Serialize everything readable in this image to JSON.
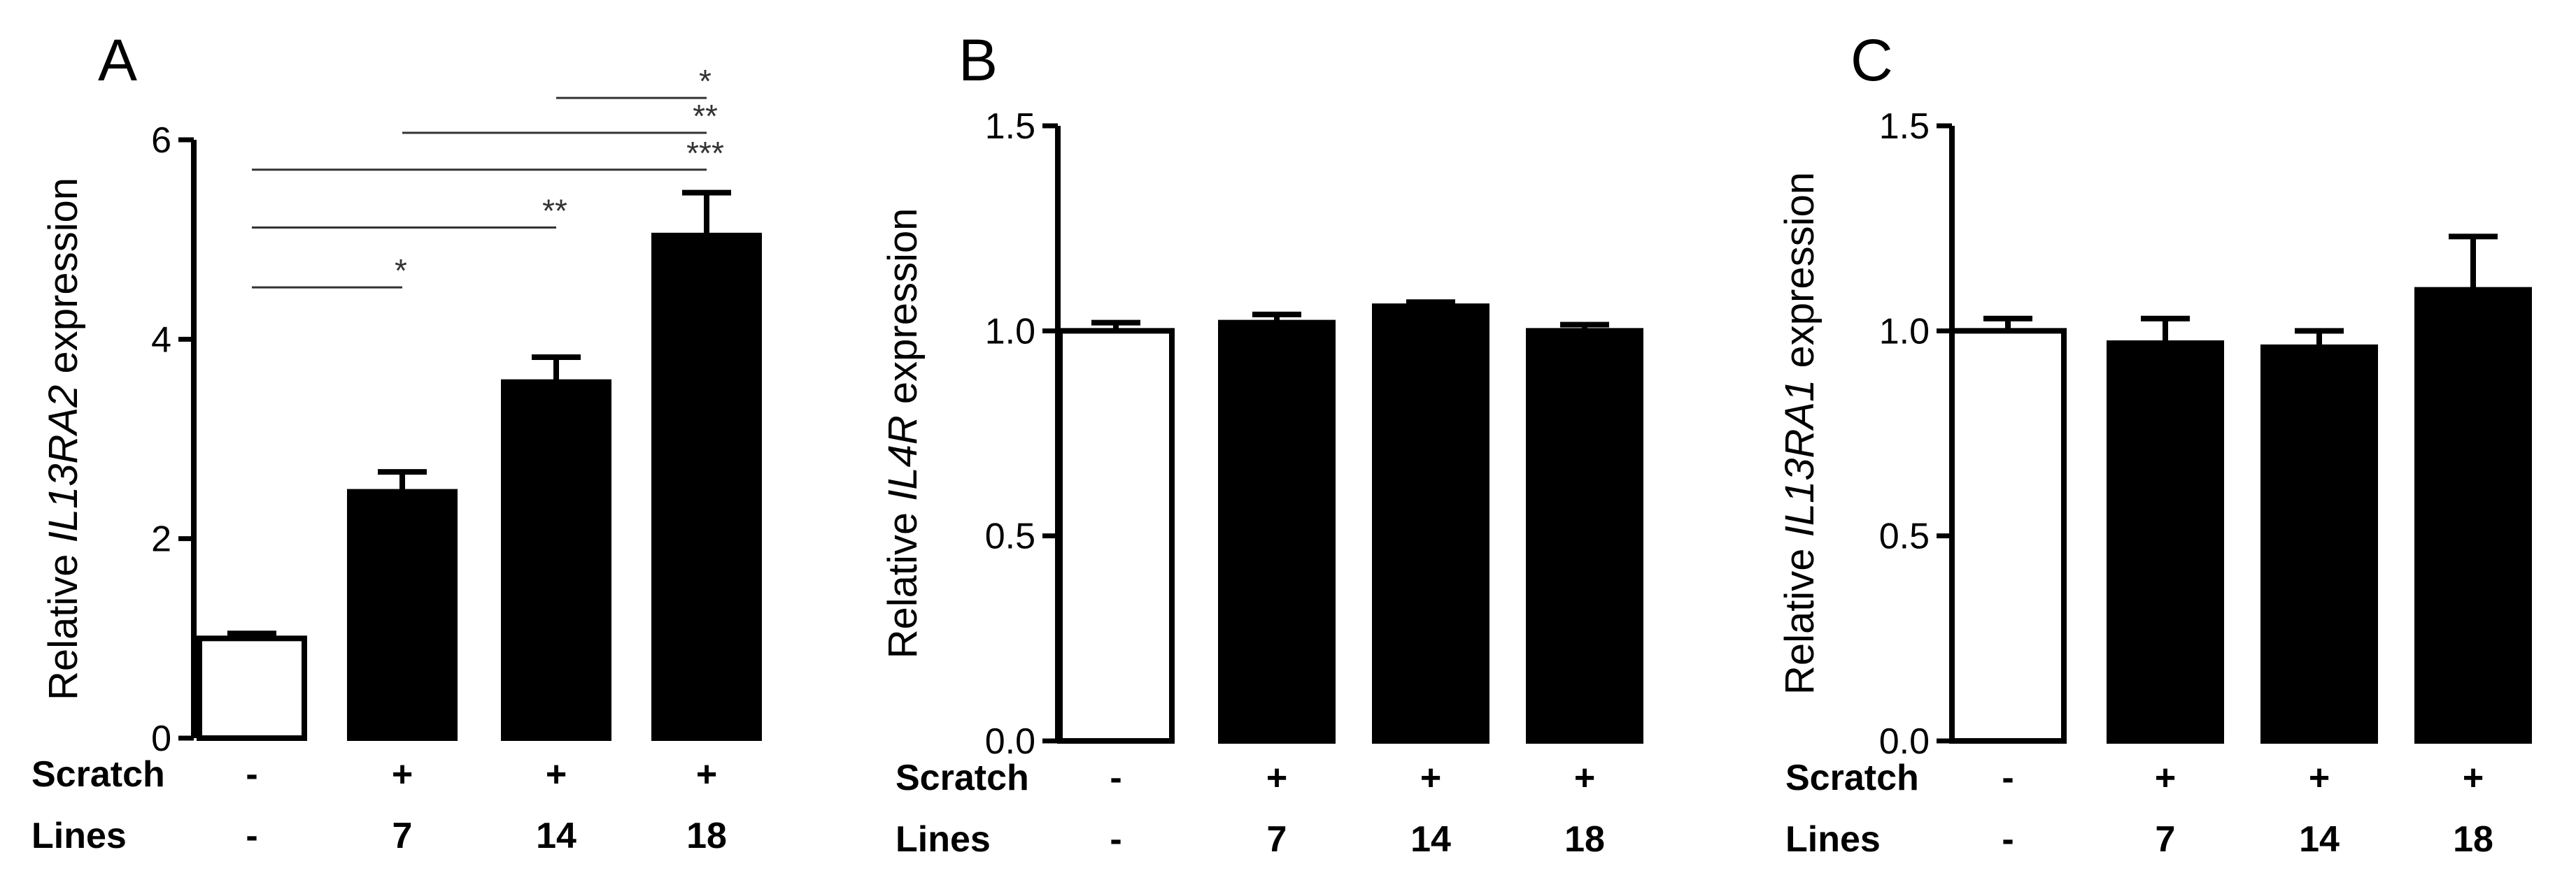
{
  "colors": {
    "control_fill": "#ffffff",
    "treated_fill": "#000000",
    "stroke": "#000000",
    "significance": "#333333"
  },
  "chart_data": [
    {
      "panel": "A",
      "type": "bar",
      "ylabel_prefix": "Relative ",
      "ylabel_gene": "IL13RA2",
      "ylabel_suffix": " expression",
      "ylim": [
        0,
        6
      ],
      "yticks": [
        "0",
        "2",
        "4",
        "6"
      ],
      "rows": [
        {
          "label": "Scratch",
          "values": [
            "-",
            "+",
            "+",
            "+"
          ]
        },
        {
          "label": "Lines",
          "values": [
            "-",
            "7",
            "14",
            "18"
          ]
        }
      ],
      "values": [
        1.0,
        2.47,
        3.57,
        5.04
      ],
      "errors": [
        0.05,
        0.2,
        0.25,
        0.43
      ],
      "fills": [
        "control",
        "treated",
        "treated",
        "treated"
      ],
      "significance": [
        {
          "from": 0,
          "to": 1,
          "label": "*",
          "y": 4.52
        },
        {
          "from": 0,
          "to": 2,
          "label": "**",
          "y": 5.12
        },
        {
          "from": 0,
          "to": 3,
          "label": "***",
          "y": 5.7
        },
        {
          "from": 1,
          "to": 3,
          "label": "**",
          "y": 6.07
        },
        {
          "from": 2,
          "to": 3,
          "label": "*",
          "y": 6.42
        }
      ]
    },
    {
      "panel": "B",
      "type": "bar",
      "ylabel_prefix": "Relative ",
      "ylabel_gene": "IL4R",
      "ylabel_suffix": " expression",
      "ylim": [
        0,
        1.5
      ],
      "yticks": [
        "0.0",
        "0.5",
        "1.0",
        "1.5"
      ],
      "rows": [
        {
          "label": "Scratch",
          "values": [
            "-",
            "+",
            "+",
            "+"
          ]
        },
        {
          "label": "Lines",
          "values": [
            "-",
            "7",
            "14",
            "18"
          ]
        }
      ],
      "values": [
        1.0,
        1.02,
        1.06,
        1.0
      ],
      "errors": [
        0.02,
        0.02,
        0.01,
        0.015
      ],
      "fills": [
        "control",
        "treated",
        "treated",
        "treated"
      ],
      "significance": []
    },
    {
      "panel": "C",
      "type": "bar",
      "ylabel_prefix": "Relative ",
      "ylabel_gene": "IL13RA1",
      "ylabel_suffix": " expression",
      "ylim": [
        0,
        1.5
      ],
      "yticks": [
        "0.0",
        "0.5",
        "1.0",
        "1.5"
      ],
      "rows": [
        {
          "label": "Scratch",
          "values": [
            "-",
            "+",
            "+",
            "+"
          ]
        },
        {
          "label": "Lines",
          "values": [
            "-",
            "7",
            "14",
            "18"
          ]
        }
      ],
      "values": [
        1.0,
        0.97,
        0.96,
        1.1
      ],
      "errors": [
        0.03,
        0.06,
        0.04,
        0.13
      ],
      "fills": [
        "control",
        "treated",
        "treated",
        "treated"
      ],
      "significance": []
    }
  ]
}
